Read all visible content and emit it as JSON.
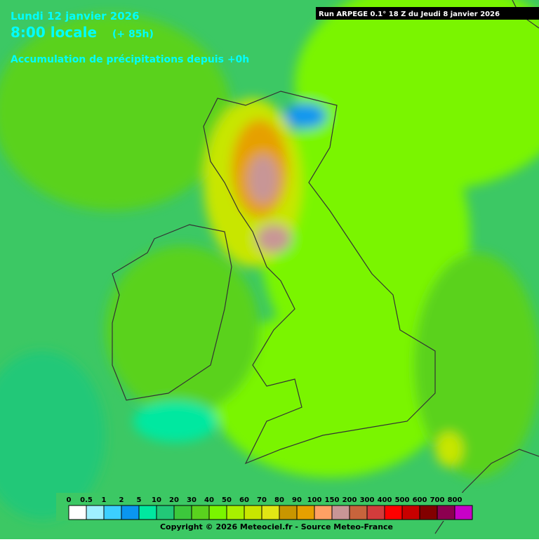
{
  "header": {
    "date": "Lundi 12 janvier 2026",
    "time": "8:00 locale",
    "lead": "(+ 85h)",
    "subtitle": "Accumulation de précipitations depuis +0h",
    "run": "Run ARPEGE 0.1° 18 Z du Jeudi 8 janvier 2026"
  },
  "legend": {
    "items": [
      {
        "label": "0",
        "color": "#ffffff"
      },
      {
        "label": "0.5",
        "color": "#9ff0ff"
      },
      {
        "label": "1",
        "color": "#3ccfff"
      },
      {
        "label": "2",
        "color": "#0a96f0"
      },
      {
        "label": "5",
        "color": "#00e8a0"
      },
      {
        "label": "10",
        "color": "#22c878"
      },
      {
        "label": "20",
        "color": "#3cc83c"
      },
      {
        "label": "30",
        "color": "#5ad21e"
      },
      {
        "label": "40",
        "color": "#7af500"
      },
      {
        "label": "50",
        "color": "#a8f000"
      },
      {
        "label": "60",
        "color": "#c8e600"
      },
      {
        "label": "70",
        "color": "#e1e614"
      },
      {
        "label": "80",
        "color": "#c89600"
      },
      {
        "label": "90",
        "color": "#e6a000"
      },
      {
        "label": "100",
        "color": "#ffa064"
      },
      {
        "label": "150",
        "color": "#c89696"
      },
      {
        "label": "200",
        "color": "#c8643c"
      },
      {
        "label": "300",
        "color": "#d23c3c"
      },
      {
        "label": "400",
        "color": "#ff0000"
      },
      {
        "label": "500",
        "color": "#c80000"
      },
      {
        "label": "600",
        "color": "#820000"
      },
      {
        "label": "700",
        "color": "#8c0050"
      },
      {
        "label": "800",
        "color": "#c800c8"
      }
    ]
  },
  "footer": {
    "copyright": "Copyright © 2026 Meteociel.fr - Source Meteo-France"
  }
}
